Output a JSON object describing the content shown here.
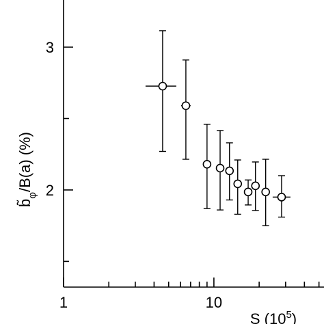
{
  "chart_data": {
    "type": "scatter",
    "xlabel": {
      "base": "S (10",
      "sup": "5",
      "rest": ")"
    },
    "ylabel": {
      "base": "b̃",
      "sub": "φ",
      "rest": "/B(a) (%)"
    },
    "x": [
      4.56,
      6.51,
      9.0,
      11.0,
      12.7,
      14.4,
      16.9,
      18.9,
      22.1,
      28.2
    ],
    "x_low": [
      3.51,
      6.05,
      8.5,
      10.4,
      12.1,
      13.8,
      16.2,
      18.2,
      21.2,
      24.6
    ],
    "x_high": [
      5.62,
      7.0,
      9.5,
      11.6,
      13.3,
      15.0,
      17.6,
      19.6,
      23.0,
      32.3
    ],
    "values": [
      2.727,
      2.59,
      2.18,
      2.153,
      2.134,
      2.043,
      1.986,
      2.029,
      1.986,
      1.95
    ],
    "y_low": [
      2.27,
      2.215,
      1.87,
      1.86,
      1.93,
      1.83,
      1.895,
      1.856,
      1.75,
      1.81
    ],
    "y_high": [
      3.115,
      2.91,
      2.46,
      2.416,
      2.33,
      2.21,
      2.07,
      2.196,
      2.215,
      2.1
    ],
    "xlim": [
      1,
      54
    ],
    "xticks": [
      1,
      10
    ],
    "xminor": [
      2,
      3,
      4,
      5,
      6,
      7,
      8,
      9,
      20,
      30,
      40,
      50
    ],
    "ylim": [
      1.32,
      3.33
    ],
    "yticks": [
      2,
      3
    ],
    "yminor": [
      1.5,
      2.5
    ],
    "xlog": true
  }
}
